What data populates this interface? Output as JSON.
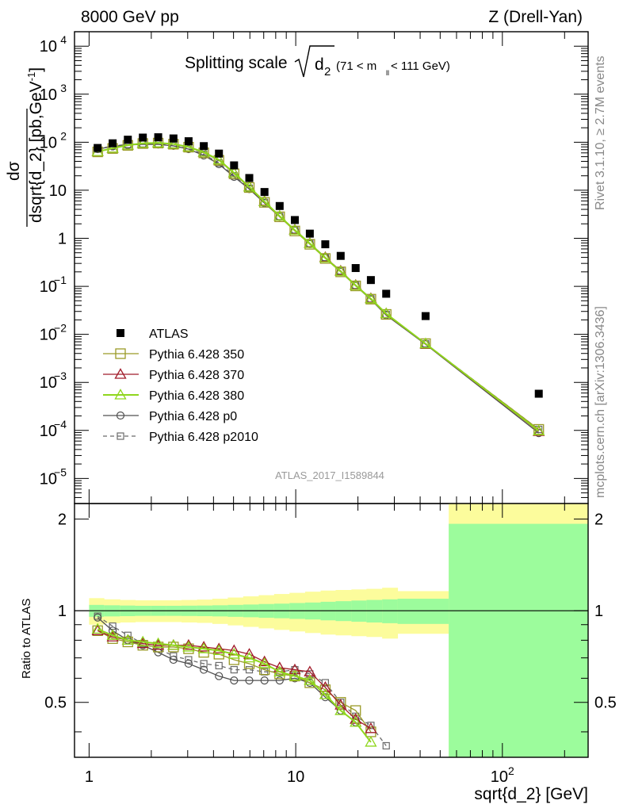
{
  "header": {
    "left": "8000 GeV pp",
    "right": "Z (Drell-Yan)"
  },
  "side_labels": {
    "rivet": "Rivet 3.1.10, ≥ 2.7M events",
    "mcplots": "mcplots.cern.ch [arXiv:1306.3436]"
  },
  "plot_title": {
    "main": "Splitting scale",
    "radicand": "d",
    "radicand_sub": "2",
    "range_pre": "(71 < m",
    "range_sub": "ll",
    "range_post": " < 111 GeV)"
  },
  "watermark": "ATLAS_2017_I1589844",
  "colors": {
    "data": "#000000",
    "p350": "#9a9a26",
    "p370": "#a11c2a",
    "p380": "#8fd61d",
    "p0": "#505050",
    "p2010": "#6a6a6a",
    "band_inner": "#9cfc9c",
    "band_outer": "#fcfc9c"
  },
  "chart_data": [
    {
      "type": "scatter",
      "name": "main",
      "xscale": "log",
      "yscale": "log",
      "xlim": [
        0.85,
        260
      ],
      "ylim": [
        3e-06,
        20000
      ],
      "ylabel": "dσ / dsqrt{d_2} [pb,GeV⁻¹]",
      "y_ticks": [
        {
          "value": 1e-05,
          "label": "10",
          "exp": "−5"
        },
        {
          "value": 0.0001,
          "label": "10",
          "exp": "−4"
        },
        {
          "value": 0.001,
          "label": "10",
          "exp": "−3"
        },
        {
          "value": 0.01,
          "label": "10",
          "exp": "−2"
        },
        {
          "value": 0.1,
          "label": "10",
          "exp": "−1"
        },
        {
          "value": 1,
          "label": "1",
          "exp": ""
        },
        {
          "value": 10,
          "label": "10",
          "exp": ""
        },
        {
          "value": 100,
          "label": "10",
          "exp": "2"
        },
        {
          "value": 1000,
          "label": "10",
          "exp": "3"
        },
        {
          "value": 10000,
          "label": "10",
          "exp": "4"
        }
      ],
      "x": [
        1.1,
        1.3,
        1.54,
        1.82,
        2.16,
        2.56,
        3.03,
        3.59,
        4.25,
        5.03,
        5.96,
        7.06,
        8.36,
        9.9,
        11.7,
        13.9,
        16.5,
        19.5,
        23.1,
        27.4,
        42.5,
        150
      ],
      "series": [
        {
          "name": "ATLAS",
          "key": "data",
          "marker": "filled-square",
          "values": [
            76,
            95,
            113,
            125,
            127,
            120,
            105,
            83,
            58,
            33,
            18,
            9.2,
            4.7,
            2.4,
            1.25,
            0.75,
            0.43,
            0.24,
            0.135,
            0.07,
            0.024,
            0.00058
          ]
        },
        {
          "name": "Pythia 6.428 350",
          "key": "p350",
          "marker": "open-square",
          "dash": false,
          "values": [
            63,
            74,
            86,
            94,
            96,
            91,
            79,
            60,
            42,
            22,
            11.4,
            5.6,
            2.8,
            1.42,
            0.75,
            0.38,
            0.2,
            0.102,
            0.054,
            0.026,
            0.0064,
            0.000105
          ]
        },
        {
          "name": "Pythia 6.428 370",
          "key": "p370",
          "marker": "open-triangle",
          "dash": false,
          "values": [
            64,
            75,
            87,
            95,
            97,
            92,
            80,
            62,
            43,
            23,
            11.8,
            5.9,
            2.9,
            1.5,
            0.79,
            0.4,
            0.21,
            0.106,
            0.056,
            0.027,
            0.0063,
            9.5e-05
          ]
        },
        {
          "name": "Pythia 6.428 380",
          "key": "p380",
          "marker": "open-triangle",
          "dash": false,
          "values": [
            64,
            75,
            87,
            95,
            97,
            92,
            80,
            62,
            43,
            23,
            11.7,
            5.8,
            2.9,
            1.48,
            0.78,
            0.39,
            0.205,
            0.104,
            0.055,
            0.027,
            0.0064,
            9.8e-05
          ]
        },
        {
          "name": "Pythia 6.428 p0",
          "key": "p0",
          "marker": "open-circle",
          "dash": false,
          "values": [
            72,
            82,
            88,
            90,
            90,
            84,
            72,
            53,
            35,
            19,
            10.6,
            5.4,
            2.8,
            1.45,
            0.76,
            0.39,
            0.2,
            0.102,
            0.053,
            0.025,
            0.0062,
            8.8e-05
          ]
        },
        {
          "name": "Pythia 6.428 p2010",
          "key": "p2010",
          "marker": "open-square-small",
          "dash": true,
          "values": [
            72,
            84,
            90,
            93,
            92,
            86,
            74,
            56,
            37,
            20,
            11,
            5.6,
            2.85,
            1.5,
            0.78,
            0.4,
            0.21,
            0.105,
            0.055,
            0.026,
            0.0064,
            0.000105
          ]
        }
      ]
    },
    {
      "type": "line",
      "name": "ratio",
      "xscale": "log",
      "yscale": "log",
      "xlim": [
        0.85,
        260
      ],
      "ylim": [
        0.33,
        2.25
      ],
      "ylabel": "Ratio to ATLAS",
      "xlabel": "sqrt{d_2} [GeV]",
      "y_ticks": [
        {
          "value": 0.5,
          "label": "0.5"
        },
        {
          "value": 1,
          "label": "1"
        },
        {
          "value": 2,
          "label": "2"
        }
      ],
      "x_ticks": [
        {
          "value": 1,
          "label": "1",
          "exp": ""
        },
        {
          "value": 10,
          "label": "10",
          "exp": ""
        },
        {
          "value": 100,
          "label": "10",
          "exp": "2"
        }
      ],
      "bands": {
        "edges": [
          1.0,
          1.18,
          1.41,
          1.67,
          1.99,
          2.36,
          2.8,
          3.33,
          3.95,
          4.69,
          5.57,
          6.62,
          7.86,
          9.33,
          11.1,
          13.2,
          15.6,
          18.6,
          22.0,
          26.2,
          31.1,
          55,
          260
        ],
        "inner_lo": [
          0.955,
          0.958,
          0.96,
          0.962,
          0.962,
          0.962,
          0.961,
          0.96,
          0.958,
          0.955,
          0.952,
          0.948,
          0.945,
          0.94,
          0.936,
          0.93,
          0.925,
          0.92,
          0.915,
          0.91,
          0.905,
          0.33
        ],
        "inner_hi": [
          1.045,
          1.042,
          1.04,
          1.038,
          1.038,
          1.038,
          1.039,
          1.04,
          1.042,
          1.045,
          1.048,
          1.052,
          1.055,
          1.06,
          1.064,
          1.07,
          1.075,
          1.08,
          1.085,
          1.09,
          1.095,
          1.93
        ],
        "outer_lo": [
          0.9,
          0.91,
          0.915,
          0.918,
          0.918,
          0.918,
          0.915,
          0.912,
          0.905,
          0.895,
          0.885,
          0.875,
          0.865,
          0.855,
          0.845,
          0.835,
          0.83,
          0.825,
          0.82,
          0.81,
          0.84,
          0.33
        ],
        "outer_hi": [
          1.1,
          1.09,
          1.085,
          1.082,
          1.082,
          1.082,
          1.085,
          1.088,
          1.095,
          1.105,
          1.115,
          1.125,
          1.135,
          1.145,
          1.155,
          1.165,
          1.17,
          1.175,
          1.18,
          1.19,
          1.16,
          2.25
        ]
      },
      "x": [
        1.1,
        1.3,
        1.54,
        1.82,
        2.16,
        2.56,
        3.03,
        3.59,
        4.25,
        5.03,
        5.96,
        7.06,
        8.36,
        9.9,
        11.7,
        13.9,
        16.5,
        19.5,
        23.1,
        27.4
      ],
      "series": [
        {
          "name": "Pythia 6.428 350",
          "key": "p350",
          "marker": "open-square",
          "dash": false,
          "values": [
            0.86,
            0.81,
            0.79,
            0.77,
            0.76,
            0.76,
            0.75,
            0.73,
            0.72,
            0.69,
            0.67,
            0.64,
            0.62,
            0.61,
            0.58,
            0.55,
            0.5,
            0.47,
            0.4,
            null
          ]
        },
        {
          "name": "Pythia 6.428 370",
          "key": "p370",
          "marker": "open-triangle",
          "dash": false,
          "values": [
            0.86,
            0.82,
            0.8,
            0.78,
            0.77,
            0.77,
            0.77,
            0.76,
            0.75,
            0.74,
            0.72,
            0.68,
            0.65,
            0.64,
            0.63,
            0.56,
            0.49,
            0.44,
            0.41,
            null
          ]
        },
        {
          "name": "Pythia 6.428 380",
          "key": "p380",
          "marker": "open-triangle",
          "dash": false,
          "values": [
            0.87,
            0.83,
            0.8,
            0.79,
            0.78,
            0.77,
            0.76,
            0.75,
            0.74,
            0.72,
            0.7,
            0.67,
            0.63,
            0.61,
            0.59,
            0.53,
            0.47,
            0.43,
            0.37,
            null
          ]
        },
        {
          "name": "Pythia 6.428 p0",
          "key": "p0",
          "marker": "open-circle",
          "dash": false,
          "values": [
            0.95,
            0.86,
            0.8,
            0.77,
            0.73,
            0.69,
            0.67,
            0.64,
            0.61,
            0.59,
            0.59,
            0.59,
            0.59,
            0.6,
            0.58,
            0.52,
            0.47,
            0.43,
            null,
            null
          ]
        },
        {
          "name": "Pythia 6.428 p2010",
          "key": "p2010",
          "marker": "open-square-small",
          "dash": true,
          "values": [
            0.96,
            0.89,
            0.83,
            0.78,
            0.75,
            0.71,
            0.69,
            0.67,
            0.66,
            0.64,
            0.64,
            0.63,
            0.63,
            0.64,
            0.62,
            0.58,
            0.5,
            0.45,
            0.42,
            0.36
          ]
        }
      ]
    }
  ]
}
